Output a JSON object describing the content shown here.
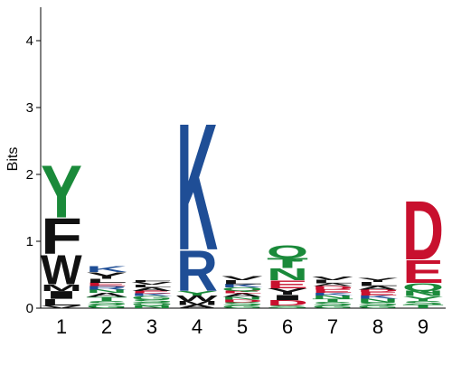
{
  "chart_data": {
    "type": "sequence-logo",
    "ylabel": "Bits",
    "xlabel": "",
    "ylim": [
      0,
      4.5
    ],
    "y_ticks": [
      "0",
      "1",
      "2",
      "3",
      "4"
    ],
    "positions": [
      "1",
      "2",
      "3",
      "4",
      "5",
      "6",
      "7",
      "8",
      "9"
    ],
    "colors": {
      "black": "#111111",
      "green": "#1a8a3a",
      "blue": "#1f4e96",
      "red": "#c8102e",
      "purple": "#7b2d8b"
    },
    "stacks": [
      [
        {
          "letter": "V",
          "bits": 0.04,
          "color": "#111111"
        },
        {
          "letter": "L",
          "bits": 0.1,
          "color": "#111111"
        },
        {
          "letter": "I",
          "bits": 0.12,
          "color": "#111111"
        },
        {
          "letter": "M",
          "bits": 0.1,
          "color": "#111111"
        },
        {
          "letter": "W",
          "bits": 0.45,
          "color": "#111111"
        },
        {
          "letter": "F",
          "bits": 0.55,
          "color": "#111111"
        },
        {
          "letter": "Y",
          "bits": 0.8,
          "color": "#1a8a3a"
        }
      ],
      [
        {
          "letter": "G",
          "bits": 0.05,
          "color": "#1a8a3a"
        },
        {
          "letter": "S",
          "bits": 0.06,
          "color": "#1a8a3a"
        },
        {
          "letter": "T",
          "bits": 0.06,
          "color": "#1a8a3a"
        },
        {
          "letter": "A",
          "bits": 0.06,
          "color": "#111111"
        },
        {
          "letter": "N",
          "bits": 0.05,
          "color": "#1a8a3a"
        },
        {
          "letter": "R",
          "bits": 0.05,
          "color": "#1f4e96"
        },
        {
          "letter": "E",
          "bits": 0.05,
          "color": "#c8102e"
        },
        {
          "letter": "L",
          "bits": 0.06,
          "color": "#111111"
        },
        {
          "letter": "Y",
          "bits": 0.1,
          "color": "#111111"
        },
        {
          "letter": "K",
          "bits": 0.09,
          "color": "#1f4e96"
        }
      ],
      [
        {
          "letter": "N",
          "bits": 0.04,
          "color": "#1a8a3a"
        },
        {
          "letter": "Q",
          "bits": 0.04,
          "color": "#1a8a3a"
        },
        {
          "letter": "S",
          "bits": 0.05,
          "color": "#1a8a3a"
        },
        {
          "letter": "G",
          "bits": 0.05,
          "color": "#1a8a3a"
        },
        {
          "letter": "K",
          "bits": 0.04,
          "color": "#1f4e96"
        },
        {
          "letter": "E",
          "bits": 0.04,
          "color": "#c8102e"
        },
        {
          "letter": "A",
          "bits": 0.05,
          "color": "#111111"
        },
        {
          "letter": "L",
          "bits": 0.04,
          "color": "#111111"
        },
        {
          "letter": "V",
          "bits": 0.04,
          "color": "#111111"
        },
        {
          "letter": "F",
          "bits": 0.03,
          "color": "#111111"
        }
      ],
      [
        {
          "letter": "A",
          "bits": 0.05,
          "color": "#111111"
        },
        {
          "letter": "M",
          "bits": 0.06,
          "color": "#111111"
        },
        {
          "letter": "W",
          "bits": 0.08,
          "color": "#111111"
        },
        {
          "letter": "Y",
          "bits": 0.07,
          "color": "#1a8a3a"
        },
        {
          "letter": "R",
          "bits": 0.62,
          "color": "#1f4e96"
        },
        {
          "letter": "K",
          "bits": 1.95,
          "color": "#1f4e96"
        }
      ],
      [
        {
          "letter": "G",
          "bits": 0.04,
          "color": "#1a8a3a"
        },
        {
          "letter": "S",
          "bits": 0.05,
          "color": "#1a8a3a"
        },
        {
          "letter": "D",
          "bits": 0.04,
          "color": "#c8102e"
        },
        {
          "letter": "N",
          "bits": 0.04,
          "color": "#1a8a3a"
        },
        {
          "letter": "A",
          "bits": 0.05,
          "color": "#111111"
        },
        {
          "letter": "E",
          "bits": 0.04,
          "color": "#c8102e"
        },
        {
          "letter": "Q",
          "bits": 0.05,
          "color": "#1a8a3a"
        },
        {
          "letter": "K",
          "bits": 0.05,
          "color": "#1f4e96"
        },
        {
          "letter": "L",
          "bits": 0.06,
          "color": "#111111"
        },
        {
          "letter": "V",
          "bits": 0.06,
          "color": "#111111"
        }
      ],
      [
        {
          "letter": "S",
          "bits": 0.04,
          "color": "#1a8a3a"
        },
        {
          "letter": "D",
          "bits": 0.08,
          "color": "#c8102e"
        },
        {
          "letter": "I",
          "bits": 0.08,
          "color": "#111111"
        },
        {
          "letter": "Y",
          "bits": 0.1,
          "color": "#111111"
        },
        {
          "letter": "E",
          "bits": 0.12,
          "color": "#c8102e"
        },
        {
          "letter": "N",
          "bits": 0.18,
          "color": "#1a8a3a"
        },
        {
          "letter": "T",
          "bits": 0.15,
          "color": "#1a8a3a"
        },
        {
          "letter": "Q",
          "bits": 0.2,
          "color": "#1a8a3a"
        }
      ],
      [
        {
          "letter": "G",
          "bits": 0.04,
          "color": "#1a8a3a"
        },
        {
          "letter": "S",
          "bits": 0.05,
          "color": "#1a8a3a"
        },
        {
          "letter": "T",
          "bits": 0.05,
          "color": "#1a8a3a"
        },
        {
          "letter": "N",
          "bits": 0.05,
          "color": "#1a8a3a"
        },
        {
          "letter": "K",
          "bits": 0.04,
          "color": "#1f4e96"
        },
        {
          "letter": "E",
          "bits": 0.05,
          "color": "#c8102e"
        },
        {
          "letter": "D",
          "bits": 0.05,
          "color": "#c8102e"
        },
        {
          "letter": "A",
          "bits": 0.04,
          "color": "#111111"
        },
        {
          "letter": "L",
          "bits": 0.05,
          "color": "#111111"
        },
        {
          "letter": "V",
          "bits": 0.05,
          "color": "#111111"
        }
      ],
      [
        {
          "letter": "G",
          "bits": 0.04,
          "color": "#1a8a3a"
        },
        {
          "letter": "S",
          "bits": 0.05,
          "color": "#1a8a3a"
        },
        {
          "letter": "N",
          "bits": 0.05,
          "color": "#1a8a3a"
        },
        {
          "letter": "K",
          "bits": 0.05,
          "color": "#1f4e96"
        },
        {
          "letter": "E",
          "bits": 0.05,
          "color": "#c8102e"
        },
        {
          "letter": "D",
          "bits": 0.04,
          "color": "#c8102e"
        },
        {
          "letter": "A",
          "bits": 0.05,
          "color": "#111111"
        },
        {
          "letter": "L",
          "bits": 0.06,
          "color": "#111111"
        },
        {
          "letter": "Y",
          "bits": 0.06,
          "color": "#111111"
        }
      ],
      [
        {
          "letter": "T",
          "bits": 0.05,
          "color": "#1a8a3a"
        },
        {
          "letter": "S",
          "bits": 0.06,
          "color": "#1a8a3a"
        },
        {
          "letter": "Y",
          "bits": 0.07,
          "color": "#1a8a3a"
        },
        {
          "letter": "N",
          "bits": 0.08,
          "color": "#1a8a3a"
        },
        {
          "letter": "Q",
          "bits": 0.12,
          "color": "#1a8a3a"
        },
        {
          "letter": "E",
          "bits": 0.35,
          "color": "#c8102e"
        },
        {
          "letter": "D",
          "bits": 0.9,
          "color": "#c8102e"
        }
      ]
    ]
  }
}
